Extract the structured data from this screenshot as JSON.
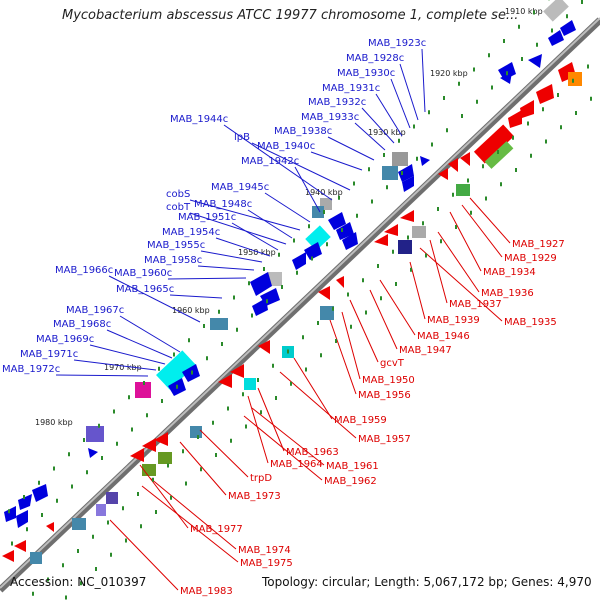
{
  "title": "Mycobacterium abscessus ATCC 19977 chromosome 1, complete se...",
  "footer": {
    "accession": "Accession: NC_010397",
    "summary": "Topology: circular; Length: 5,067,172 bp; Genes: 4,970"
  },
  "tick_labels": [
    "1910 kbp",
    "1920 kbp",
    "1930 kbp",
    "1940 kbp",
    "1950 kbp",
    "1960 kbp",
    "1970 kbp",
    "1980 kbp"
  ],
  "colors": {
    "forward_label": "#1a1acc",
    "reverse_label": "#dd0000",
    "forward_gene": "#0000dd",
    "reverse_gene": "#ee0000",
    "backbone": "#888888",
    "tick_dot": "#2a8a2a"
  },
  "forward_genes": [
    "MAB_1923c",
    "MAB_1928c",
    "MAB_1930c",
    "MAB_1931c",
    "MAB_1932c",
    "MAB_1933c",
    "MAB_1938c",
    "MAB_1940c",
    "lpB",
    "MAB_1944c",
    "MAB_1942c",
    "MAB_1945c",
    "cobS",
    "MAB_1948c",
    "cobT",
    "MAB_1951c",
    "MAB_1954c",
    "MAB_1955c",
    "MAB_1958c",
    "MAB_1966c",
    "MAB_1960c",
    "MAB_1965c",
    "MAB_1967c",
    "MAB_1968c",
    "MAB_1969c",
    "MAB_1971c",
    "MAB_1972c"
  ],
  "reverse_genes": [
    "MAB_1927",
    "MAB_1929",
    "MAB_1934",
    "MAB_1936",
    "MAB_1937",
    "MAB_1935",
    "MAB_1939",
    "MAB_1946",
    "MAB_1947",
    "gcvT",
    "MAB_1950",
    "MAB_1956",
    "MAB_1959",
    "MAB_1957",
    "MAB_1963",
    "MAB_1964",
    "MAB_1961",
    "MAB_1962",
    "trpD",
    "MAB_1973",
    "MAB_1977",
    "MAB_1974",
    "MAB_1975",
    "MAB_1983"
  ]
}
